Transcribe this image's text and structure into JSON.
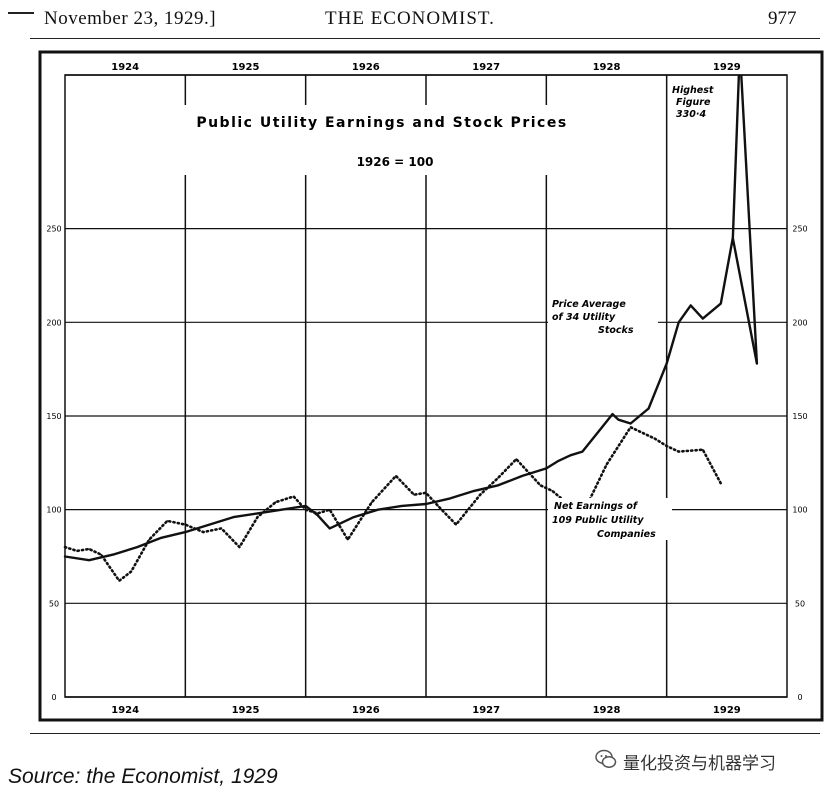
{
  "page": {
    "date": "November 23, 1929.]",
    "publication": "THE ECONOMIST.",
    "page_number": "977"
  },
  "source": "Source: the Economist, 1929",
  "watermark": {
    "icon": "wechat-icon",
    "text": "量化投资与机器学习"
  },
  "chart_data": {
    "type": "line",
    "title": "Public Utility Earnings and Stock Prices",
    "subtitle": "1926 = 100",
    "years": [
      "1924",
      "1925",
      "1926",
      "1927",
      "1928",
      "1929"
    ],
    "x_range": [
      1924.0,
      1930.0
    ],
    "ylim": [
      0,
      330
    ],
    "yticks": [
      0,
      50,
      100,
      150,
      250
    ],
    "grid": true,
    "series": [
      {
        "key": "prices",
        "style": "solid",
        "x": [
          1924.0,
          1924.2,
          1924.4,
          1924.6,
          1924.8,
          1925.0,
          1925.2,
          1925.4,
          1925.6,
          1925.8,
          1926.0,
          1926.1,
          1926.2,
          1926.4,
          1926.6,
          1926.8,
          1927.0,
          1927.2,
          1927.4,
          1927.6,
          1927.8,
          1928.0,
          1928.1,
          1928.2,
          1928.3,
          1928.45,
          1928.55,
          1928.6,
          1928.7,
          1928.85,
          1929.0,
          1929.1,
          1929.2,
          1929.3,
          1929.45,
          1929.55,
          1929.75
        ],
        "values": [
          75,
          73,
          76,
          80,
          85,
          88,
          92,
          96,
          98,
          100,
          102,
          97,
          90,
          96,
          100,
          102,
          103,
          106,
          110,
          113,
          118,
          122,
          126,
          129,
          131,
          143,
          151,
          148,
          146,
          154,
          178,
          200,
          209,
          202,
          210,
          245,
          178
        ]
      },
      {
        "key": "earnings",
        "style": "dotted",
        "x": [
          1924.0,
          1924.1,
          1924.2,
          1924.3,
          1924.45,
          1924.55,
          1924.7,
          1924.85,
          1925.0,
          1925.15,
          1925.3,
          1925.45,
          1925.6,
          1925.75,
          1925.9,
          1926.0,
          1926.1,
          1926.2,
          1926.35,
          1926.55,
          1926.75,
          1926.9,
          1927.0,
          1927.1,
          1927.25,
          1927.45,
          1927.6,
          1927.75,
          1927.95,
          1928.05,
          1928.2,
          1928.35,
          1928.5,
          1928.7,
          1928.9,
          1929.0,
          1929.1,
          1929.3,
          1929.45
        ],
        "values": [
          80,
          78,
          79,
          76,
          62,
          67,
          84,
          94,
          92,
          88,
          90,
          80,
          96,
          104,
          107,
          100,
          98,
          100,
          84,
          104,
          118,
          108,
          109,
          102,
          92,
          108,
          117,
          127,
          113,
          110,
          102,
          104,
          124,
          144,
          138,
          134,
          131,
          132,
          114
        ]
      }
    ],
    "annotations": {
      "highest": [
        "Highest",
        "Figure",
        "330·4"
      ],
      "price_label": [
        "Price Average",
        "of 34 Utility",
        "Stocks"
      ],
      "earnings_label": [
        "Net Earnings of",
        "109 Public Utility",
        "Companies"
      ]
    }
  }
}
